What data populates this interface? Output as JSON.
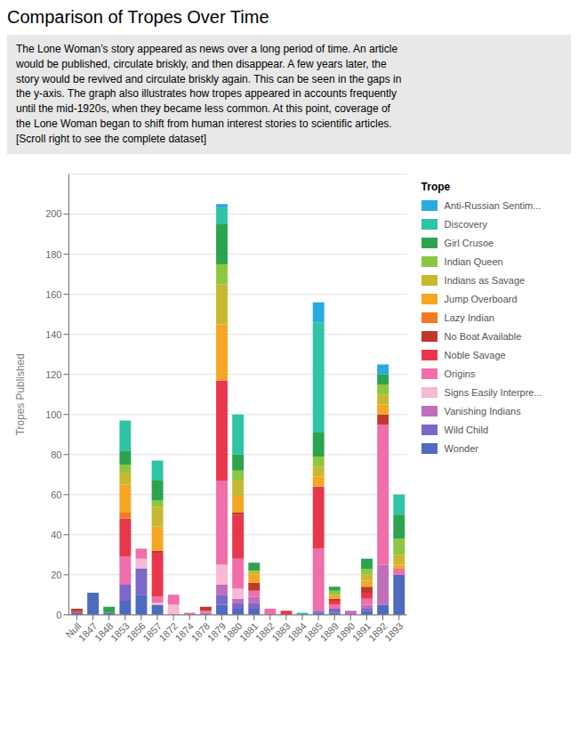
{
  "chart_data": {
    "type": "bar",
    "stacked": true,
    "grid": true,
    "legend": "right",
    "title": "Comparison of Tropes Over Time",
    "subtitle": "The Lone Woman’s story appeared as news over a long period of time. An article\nwould be published, circulate briskly, and then disappear. A few years later, the\nstory would be revived and circulate briskly again. This can be seen in the gaps in\nthe y-axis. The graph also illustrates how tropes appeared in accounts frequently\nuntil the mid-1920s, when they became less common. At this point, coverage of\nthe Lone Woman began to shift from human interest stories to scientific articles.\n[Scroll right to see the complete dataset]",
    "ylabel": "Tropes Published",
    "annotations": [
      "Trope"
    ],
    "categories": [
      "Null",
      "1847",
      "1848",
      "1853",
      "1856",
      "1857",
      "1872",
      "1874",
      "1878",
      "1879",
      "1880",
      "1881",
      "1882",
      "1883",
      "1884",
      "1885",
      "1889",
      "1890",
      "1891",
      "1892",
      "1893"
    ],
    "series": [
      {
        "name": "Wonder",
        "color": "#4d6bbf",
        "values": [
          1,
          11,
          1,
          7,
          10,
          5,
          0,
          0,
          0,
          5,
          3,
          3,
          0,
          0,
          0,
          1,
          1,
          0,
          2,
          5,
          20
        ]
      },
      {
        "name": "Wild Child",
        "color": "#7b68c8",
        "values": [
          0,
          0,
          0,
          8,
          13,
          0,
          0,
          0,
          0,
          5,
          3,
          3,
          0,
          0,
          0,
          1,
          2,
          0,
          1,
          0,
          0
        ]
      },
      {
        "name": "Vanishing Indians",
        "color": "#c06fba",
        "values": [
          0,
          0,
          0,
          0,
          0,
          0,
          0,
          0,
          1,
          5,
          2,
          3,
          0,
          0,
          0,
          0,
          0,
          2,
          2,
          20,
          0
        ]
      },
      {
        "name": "Signs Easily Interpre...",
        "color": "#f9b8d4",
        "values": [
          0,
          0,
          0,
          0,
          5,
          1,
          5,
          0,
          0,
          10,
          5,
          0,
          0,
          0,
          0,
          0,
          0,
          0,
          0,
          0,
          0
        ]
      },
      {
        "name": "Origins",
        "color": "#f06eaa",
        "values": [
          0,
          0,
          0,
          14,
          5,
          3,
          5,
          1,
          1,
          42,
          15,
          3,
          3,
          0,
          0,
          31,
          2,
          0,
          3,
          70,
          3
        ]
      },
      {
        "name": "Noble Savage",
        "color": "#e8374b",
        "values": [
          1,
          0,
          0,
          19,
          0,
          22,
          0,
          0,
          0,
          50,
          22,
          0,
          0,
          2,
          0,
          31,
          2,
          0,
          3,
          0,
          0
        ]
      },
      {
        "name": "No Boat Available",
        "color": "#c0392b",
        "values": [
          1,
          0,
          0,
          0,
          0,
          1,
          0,
          0,
          2,
          0,
          1,
          4,
          0,
          0,
          0,
          0,
          1,
          0,
          3,
          5,
          0
        ]
      },
      {
        "name": "Lazy Indian",
        "color": "#f47920",
        "values": [
          0,
          0,
          0,
          3,
          0,
          0,
          0,
          0,
          0,
          0,
          0,
          0,
          0,
          0,
          0,
          0,
          0,
          0,
          0,
          0,
          0
        ]
      },
      {
        "name": "Jump Overboard",
        "color": "#f5a623",
        "values": [
          0,
          0,
          0,
          14,
          0,
          12,
          0,
          0,
          0,
          28,
          8,
          4,
          0,
          0,
          0,
          5,
          2,
          0,
          3,
          5,
          2
        ]
      },
      {
        "name": "Indians as Savage",
        "color": "#c8b830",
        "values": [
          0,
          0,
          0,
          6,
          0,
          10,
          0,
          0,
          0,
          20,
          8,
          2,
          0,
          0,
          0,
          5,
          0,
          0,
          3,
          5,
          5
        ]
      },
      {
        "name": "Indian Queen",
        "color": "#8dc63f",
        "values": [
          0,
          0,
          0,
          4,
          0,
          3,
          0,
          0,
          0,
          10,
          5,
          0,
          0,
          0,
          0,
          5,
          2,
          0,
          3,
          5,
          8
        ]
      },
      {
        "name": "Girl Crusoe",
        "color": "#2ca44e",
        "values": [
          0,
          0,
          3,
          7,
          0,
          10,
          0,
          0,
          0,
          20,
          8,
          4,
          0,
          0,
          0,
          12,
          2,
          0,
          5,
          5,
          12
        ]
      },
      {
        "name": "Discovery",
        "color": "#2ec4a5",
        "values": [
          0,
          0,
          0,
          15,
          0,
          10,
          0,
          0,
          0,
          8,
          20,
          0,
          0,
          0,
          1,
          55,
          0,
          0,
          0,
          0,
          10
        ]
      },
      {
        "name": "Anti-Russian Sentim...",
        "color": "#29aae1",
        "values": [
          0,
          0,
          0,
          0,
          0,
          0,
          0,
          0,
          0,
          2,
          0,
          0,
          0,
          0,
          0,
          10,
          0,
          0,
          0,
          5,
          0
        ]
      }
    ],
    "ylim": [
      0,
      220
    ],
    "yticks": [
      0,
      20,
      40,
      60,
      80,
      100,
      120,
      140,
      160,
      180,
      200
    ]
  }
}
